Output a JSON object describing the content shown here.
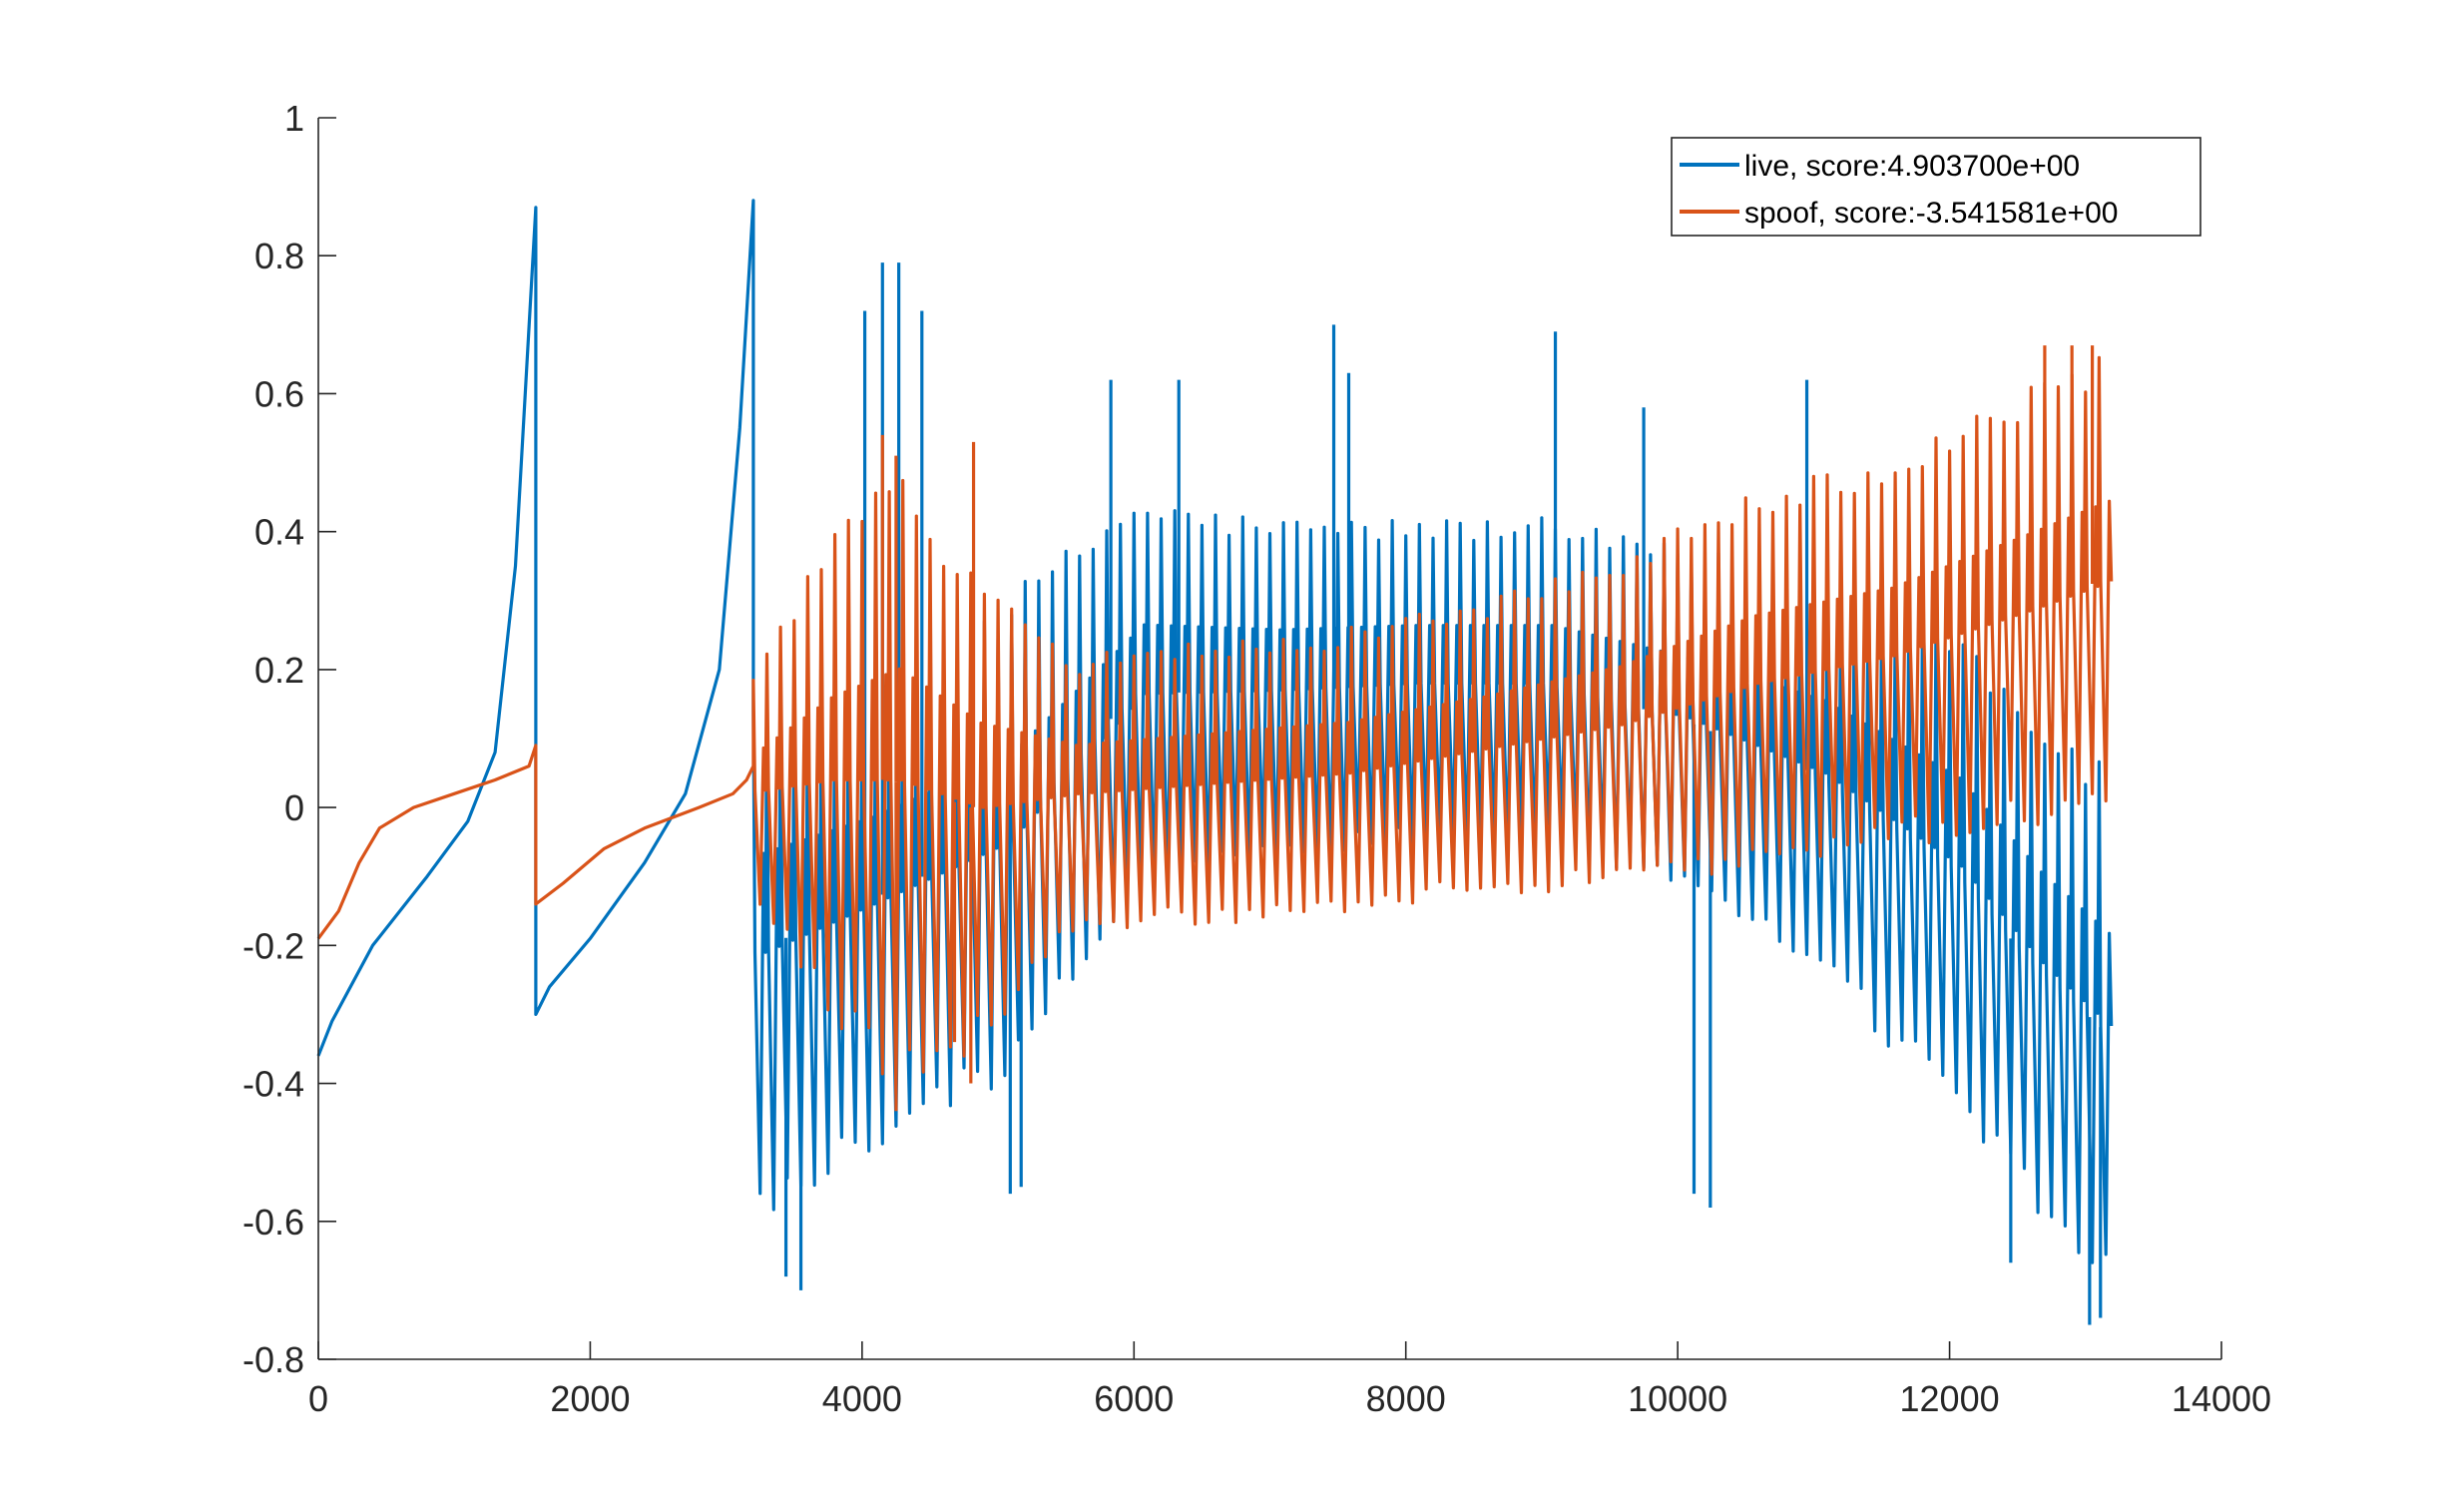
{
  "chart_data": {
    "type": "line",
    "title": "",
    "xlabel": "",
    "ylabel": "",
    "xlim": [
      0,
      14000
    ],
    "ylim": [
      -0.8,
      1
    ],
    "grid": false,
    "legend_position": "top-right",
    "x_ticks": [
      0,
      2000,
      4000,
      6000,
      8000,
      10000,
      12000,
      14000
    ],
    "x_tick_labels": [
      "0",
      "2000",
      "4000",
      "6000",
      "8000",
      "10000",
      "12000",
      "14000"
    ],
    "y_ticks": [
      -0.8,
      -0.6,
      -0.4,
      -0.2,
      0,
      0.2,
      0.4,
      0.6,
      0.8,
      1
    ],
    "y_tick_labels": [
      "-0.8",
      "-0.6",
      "-0.4",
      "-0.2",
      "0",
      "0.2",
      "0.4",
      "0.6",
      "0.8",
      "1"
    ],
    "series": [
      {
        "name": "live, score:4.903700e+00",
        "color": "#0072BD",
        "ramps": [
          {
            "x": [
              0,
              100,
              400,
              800,
              1100,
              1300,
              1450,
              1600
            ],
            "y": [
              -0.36,
              -0.31,
              -0.2,
              -0.1,
              -0.02,
              0.08,
              0.35,
              0.87
            ]
          },
          {
            "x": [
              1600,
              1700,
              2000,
              2400,
              2700,
              2950,
              3100,
              3200
            ],
            "y": [
              -0.3,
              -0.26,
              -0.19,
              -0.08,
              0.02,
              0.2,
              0.55,
              0.88
            ]
          }
        ],
        "osc": {
          "x_start": 3200,
          "x_end": 13200,
          "period": 100,
          "x": [
            3200,
            4000,
            5000,
            6000,
            7000,
            8000,
            9000,
            10000,
            11000,
            12000,
            12600,
            13200
          ],
          "upper": [
            0.2,
            0.22,
            0.3,
            0.45,
            0.42,
            0.42,
            0.42,
            0.38,
            0.35,
            0.28,
            0.15,
            0.05
          ],
          "lower": [
            -0.62,
            -0.5,
            -0.4,
            -0.12,
            -0.08,
            -0.06,
            -0.06,
            -0.12,
            -0.25,
            -0.45,
            -0.6,
            -0.72
          ],
          "spikes": [
            {
              "x": 4150,
              "y": 0.79
            },
            {
              "x": 4270,
              "y": 0.79
            },
            {
              "x": 4020,
              "y": 0.72
            },
            {
              "x": 5830,
              "y": 0.62
            },
            {
              "x": 6330,
              "y": 0.62
            },
            {
              "x": 7470,
              "y": 0.7
            },
            {
              "x": 7580,
              "y": 0.63
            },
            {
              "x": 9100,
              "y": 0.69
            },
            {
              "x": 10950,
              "y": 0.62
            },
            {
              "x": 4440,
              "y": 0.72
            },
            {
              "x": 9750,
              "y": 0.58
            },
            {
              "x": 3550,
              "y": -0.7
            },
            {
              "x": 3440,
              "y": -0.68
            },
            {
              "x": 10120,
              "y": -0.56
            },
            {
              "x": 10240,
              "y": -0.58
            },
            {
              "x": 5090,
              "y": -0.56
            },
            {
              "x": 5170,
              "y": -0.55
            },
            {
              "x": 13030,
              "y": -0.75
            },
            {
              "x": 13110,
              "y": -0.74
            },
            {
              "x": 12450,
              "y": -0.66
            }
          ]
        }
      },
      {
        "name": "spoof, score:-3.541581e+00",
        "color": "#D95319",
        "ramps": [
          {
            "x": [
              0,
              150,
              300,
              450,
              700,
              1000,
              1300,
              1550,
              1600
            ],
            "y": [
              -0.19,
              -0.15,
              -0.08,
              -0.03,
              0.0,
              0.02,
              0.04,
              0.06,
              0.09
            ]
          },
          {
            "x": [
              1600,
              1800,
              2100,
              2400,
              2800,
              3050,
              3150,
              3200
            ],
            "y": [
              -0.14,
              -0.11,
              -0.06,
              -0.03,
              0.0,
              0.02,
              0.04,
              0.06
            ]
          }
        ],
        "osc": {
          "x_start": 3200,
          "x_end": 13200,
          "period": 100,
          "x": [
            3200,
            3700,
            4200,
            4800,
            5500,
            6500,
            7500,
            8500,
            9500,
            10500,
            11500,
            12500,
            13200
          ],
          "upper": [
            0.2,
            0.38,
            0.5,
            0.35,
            0.22,
            0.24,
            0.26,
            0.3,
            0.36,
            0.46,
            0.5,
            0.6,
            0.67
          ],
          "lower": [
            -0.15,
            -0.3,
            -0.42,
            -0.35,
            -0.18,
            -0.17,
            -0.16,
            -0.13,
            -0.12,
            -0.1,
            -0.06,
            -0.03,
            0.0
          ],
          "spikes": [
            {
              "x": 4150,
              "y": 0.54
            },
            {
              "x": 4250,
              "y": 0.51
            },
            {
              "x": 4820,
              "y": 0.53
            },
            {
              "x": 12700,
              "y": 0.67
            },
            {
              "x": 12900,
              "y": 0.67
            },
            {
              "x": 13050,
              "y": 0.67
            },
            {
              "x": 4250,
              "y": -0.44
            },
            {
              "x": 4800,
              "y": -0.4
            },
            {
              "x": 4680,
              "y": -0.34
            }
          ]
        }
      }
    ]
  }
}
